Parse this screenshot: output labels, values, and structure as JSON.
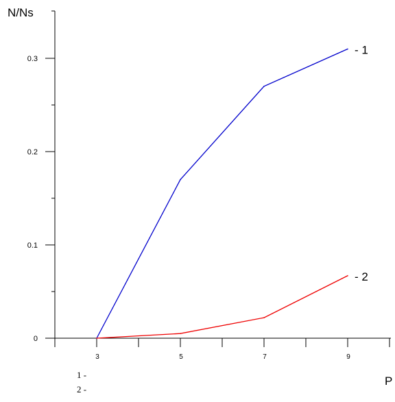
{
  "chart_data": {
    "type": "line",
    "ylabel": "N/Ns",
    "xlabel": "P",
    "xlim": [
      2,
      10
    ],
    "ylim": [
      0,
      0.35
    ],
    "x_ticks": [
      3,
      5,
      7,
      9
    ],
    "y_ticks": [
      0,
      0.1,
      0.2,
      0.3
    ],
    "y_tick_labels": [
      "0",
      "0.1",
      "0.2",
      "0.3"
    ],
    "x": [
      3,
      5,
      7,
      9
    ],
    "series": [
      {
        "label": "- 1",
        "color": "#0000cc",
        "values": [
          0,
          0.17,
          0.27,
          0.31
        ]
      },
      {
        "label": "- 2",
        "color": "#ee0000",
        "values": [
          0,
          0.005,
          0.022,
          0.067
        ]
      }
    ],
    "grid": false,
    "legend": [
      "1 -",
      "2 -"
    ]
  }
}
